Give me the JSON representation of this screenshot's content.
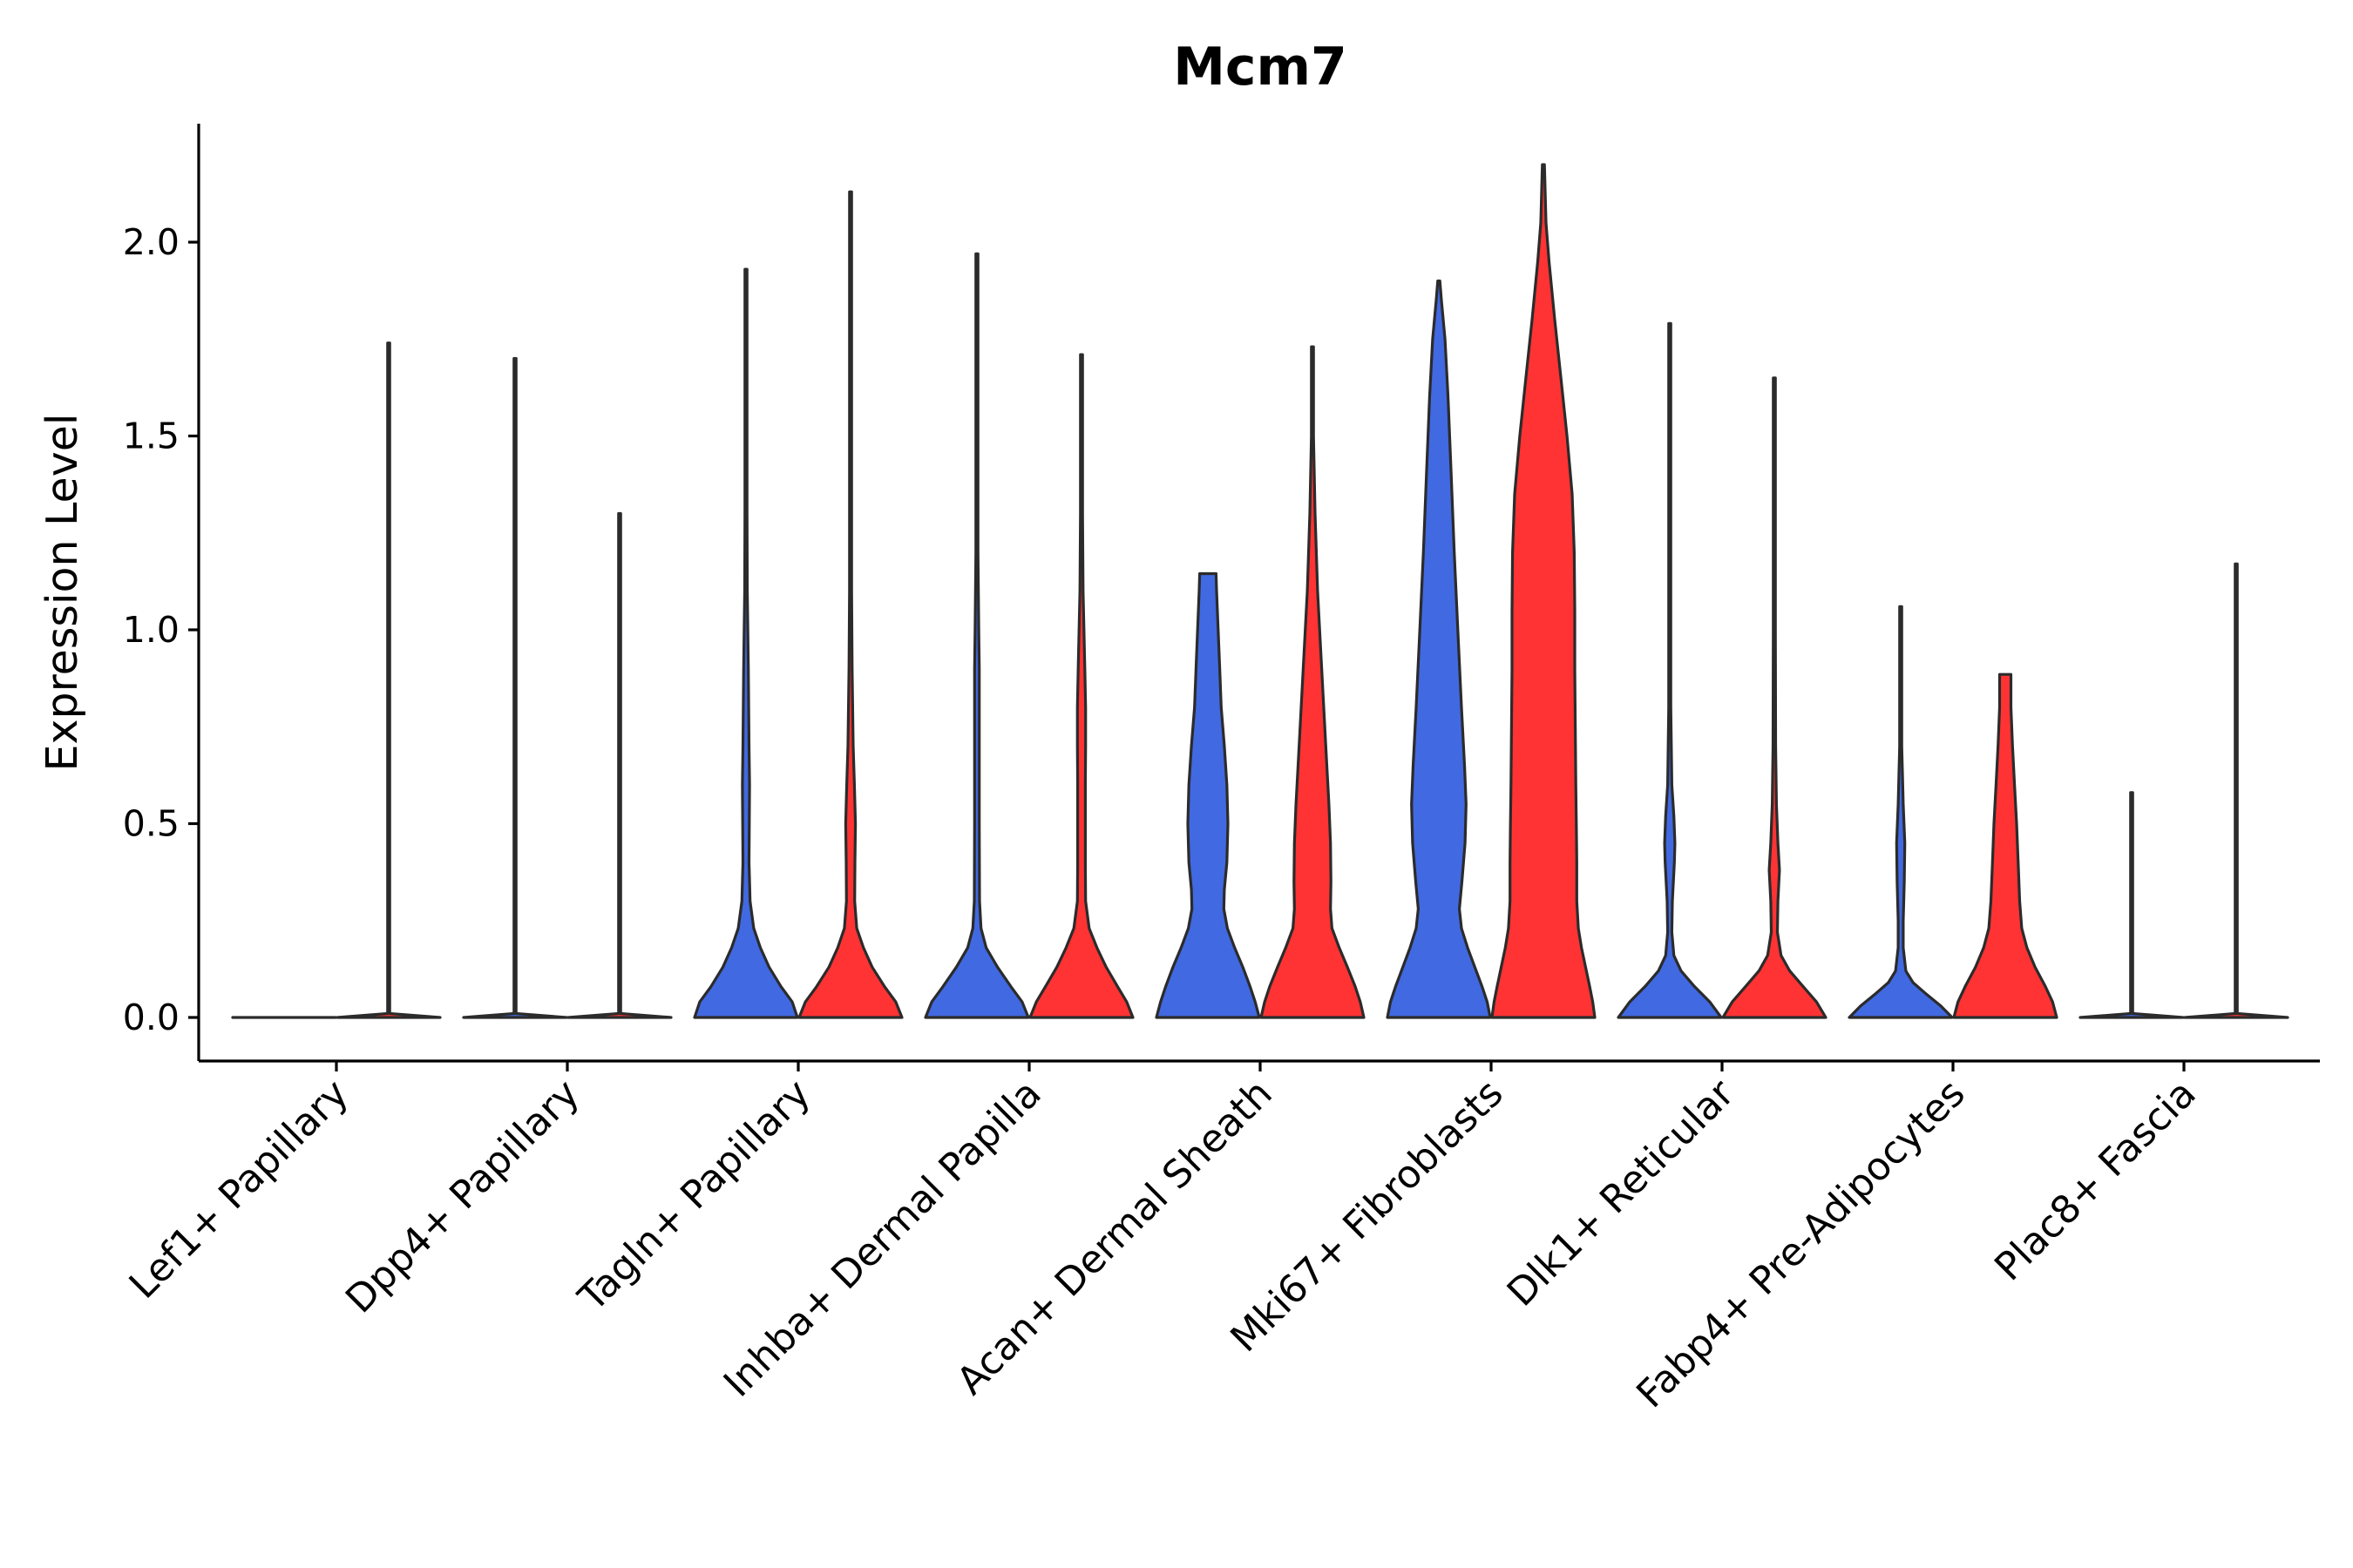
{
  "chart_data": {
    "type": "violin",
    "title": "Mcm7",
    "xlabel": "",
    "ylabel": "Expression Level",
    "ylim": [
      -0.11,
      2.3
    ],
    "yticks": [
      0.0,
      0.5,
      1.0,
      1.5,
      2.0
    ],
    "ytick_labels": [
      "0.0",
      "0.5",
      "1.0",
      "1.5",
      "2.0"
    ],
    "grid": false,
    "legend": "none",
    "series_colors": {
      "group1": "#4169E1",
      "group2": "#FF3333"
    },
    "categories": [
      "Lef1+ Papillary",
      "Dpp4+ Papillary",
      "Tagln+ Papillary",
      "Inhba+ Dermal Papilla",
      "Acan+ Dermal Sheath",
      "Mki67+ Fibroblasts",
      "Dlk1+ Reticular",
      "Fabp4+ Pre-Adipocytes",
      "Plac8+ Fascia"
    ],
    "violins": [
      {
        "category": "Lef1+ Papillary",
        "group": "group1",
        "max": 0.0,
        "width": 1.0,
        "profile": [
          [
            0,
            1.0
          ]
        ]
      },
      {
        "category": "Lef1+ Papillary",
        "group": "group2",
        "max": 1.74,
        "width": 1.0,
        "profile": [
          [
            0,
            1.0
          ],
          [
            0.01,
            0.01
          ],
          [
            1.74,
            0.005
          ]
        ]
      },
      {
        "category": "Dpp4+ Papillary",
        "group": "group1",
        "max": 1.7,
        "width": 1.0,
        "profile": [
          [
            0,
            1.0
          ],
          [
            0.01,
            0.01
          ],
          [
            1.7,
            0.005
          ]
        ]
      },
      {
        "category": "Dpp4+ Papillary",
        "group": "group2",
        "max": 1.3,
        "width": 1.0,
        "profile": [
          [
            0,
            1.0
          ],
          [
            0.01,
            0.01
          ],
          [
            1.3,
            0.005
          ]
        ]
      },
      {
        "category": "Tagln+ Papillary",
        "group": "group1",
        "max": 1.93,
        "width": 1.0,
        "profile": [
          [
            0,
            1.0
          ],
          [
            0.04,
            0.9
          ],
          [
            0.08,
            0.68
          ],
          [
            0.13,
            0.45
          ],
          [
            0.18,
            0.28
          ],
          [
            0.23,
            0.15
          ],
          [
            0.3,
            0.08
          ],
          [
            0.4,
            0.06
          ],
          [
            0.5,
            0.065
          ],
          [
            0.6,
            0.07
          ],
          [
            0.7,
            0.06
          ],
          [
            0.9,
            0.045
          ],
          [
            1.1,
            0.025
          ],
          [
            1.3,
            0.012
          ],
          [
            1.5,
            0.006
          ],
          [
            1.93,
            0.005
          ]
        ]
      },
      {
        "category": "Tagln+ Papillary",
        "group": "group2",
        "max": 2.13,
        "width": 1.0,
        "profile": [
          [
            0,
            1.0
          ],
          [
            0.04,
            0.88
          ],
          [
            0.08,
            0.66
          ],
          [
            0.13,
            0.42
          ],
          [
            0.18,
            0.25
          ],
          [
            0.23,
            0.12
          ],
          [
            0.3,
            0.08
          ],
          [
            0.4,
            0.085
          ],
          [
            0.5,
            0.095
          ],
          [
            0.6,
            0.075
          ],
          [
            0.7,
            0.05
          ],
          [
            0.9,
            0.03
          ],
          [
            1.1,
            0.015
          ],
          [
            1.4,
            0.008
          ],
          [
            2.13,
            0.005
          ]
        ]
      },
      {
        "category": "Inhba+ Dermal Papilla",
        "group": "group1",
        "max": 1.97,
        "width": 1.0,
        "profile": [
          [
            0,
            1.0
          ],
          [
            0.04,
            0.88
          ],
          [
            0.08,
            0.66
          ],
          [
            0.13,
            0.4
          ],
          [
            0.18,
            0.18
          ],
          [
            0.23,
            0.08
          ],
          [
            0.3,
            0.05
          ],
          [
            0.5,
            0.045
          ],
          [
            0.7,
            0.045
          ],
          [
            0.9,
            0.045
          ],
          [
            1.0,
            0.035
          ],
          [
            1.2,
            0.015
          ],
          [
            1.5,
            0.007
          ],
          [
            1.97,
            0.005
          ]
        ]
      },
      {
        "category": "Inhba+ Dermal Papilla",
        "group": "group2",
        "max": 1.71,
        "width": 1.0,
        "profile": [
          [
            0,
            1.0
          ],
          [
            0.04,
            0.88
          ],
          [
            0.08,
            0.7
          ],
          [
            0.13,
            0.48
          ],
          [
            0.18,
            0.3
          ],
          [
            0.23,
            0.15
          ],
          [
            0.3,
            0.08
          ],
          [
            0.4,
            0.075
          ],
          [
            0.5,
            0.075
          ],
          [
            0.6,
            0.075
          ],
          [
            0.7,
            0.08
          ],
          [
            0.8,
            0.08
          ],
          [
            0.9,
            0.065
          ],
          [
            1.1,
            0.03
          ],
          [
            1.3,
            0.012
          ],
          [
            1.71,
            0.005
          ]
        ]
      },
      {
        "category": "Acan+ Dermal Sheath",
        "group": "group1",
        "max": 1.145,
        "width": 1.0,
        "profile": [
          [
            0,
            1.0
          ],
          [
            0.04,
            0.92
          ],
          [
            0.08,
            0.82
          ],
          [
            0.13,
            0.68
          ],
          [
            0.18,
            0.52
          ],
          [
            0.23,
            0.38
          ],
          [
            0.28,
            0.31
          ],
          [
            0.33,
            0.32
          ],
          [
            0.4,
            0.37
          ],
          [
            0.5,
            0.39
          ],
          [
            0.6,
            0.37
          ],
          [
            0.7,
            0.32
          ],
          [
            0.8,
            0.26
          ],
          [
            0.9,
            0.23
          ],
          [
            1.0,
            0.2
          ],
          [
            1.1,
            0.17
          ],
          [
            1.145,
            0.16
          ]
        ]
      },
      {
        "category": "Acan+ Dermal Sheath",
        "group": "group2",
        "max": 1.73,
        "width": 1.0,
        "profile": [
          [
            0,
            1.0
          ],
          [
            0.04,
            0.93
          ],
          [
            0.08,
            0.83
          ],
          [
            0.13,
            0.68
          ],
          [
            0.18,
            0.52
          ],
          [
            0.23,
            0.38
          ],
          [
            0.28,
            0.35
          ],
          [
            0.35,
            0.36
          ],
          [
            0.45,
            0.35
          ],
          [
            0.55,
            0.32
          ],
          [
            0.7,
            0.26
          ],
          [
            0.9,
            0.18
          ],
          [
            1.1,
            0.1
          ],
          [
            1.3,
            0.05
          ],
          [
            1.5,
            0.02
          ],
          [
            1.73,
            0.005
          ]
        ]
      },
      {
        "category": "Mki67+ Fibroblasts",
        "group": "group1",
        "max": 1.9,
        "width": 1.0,
        "profile": [
          [
            0,
            1.0
          ],
          [
            0.04,
            0.94
          ],
          [
            0.08,
            0.84
          ],
          [
            0.13,
            0.7
          ],
          [
            0.18,
            0.56
          ],
          [
            0.23,
            0.44
          ],
          [
            0.28,
            0.4
          ],
          [
            0.35,
            0.45
          ],
          [
            0.45,
            0.51
          ],
          [
            0.55,
            0.53
          ],
          [
            0.65,
            0.5
          ],
          [
            0.8,
            0.44
          ],
          [
            1.0,
            0.37
          ],
          [
            1.2,
            0.3
          ],
          [
            1.4,
            0.24
          ],
          [
            1.6,
            0.18
          ],
          [
            1.75,
            0.12
          ],
          [
            1.85,
            0.05
          ],
          [
            1.9,
            0.01
          ]
        ]
      },
      {
        "category": "Mki67+ Fibroblasts",
        "group": "group2",
        "max": 2.2,
        "width": 1.0,
        "profile": [
          [
            0,
            1.0
          ],
          [
            0.04,
            0.96
          ],
          [
            0.08,
            0.9
          ],
          [
            0.13,
            0.82
          ],
          [
            0.18,
            0.74
          ],
          [
            0.23,
            0.68
          ],
          [
            0.3,
            0.65
          ],
          [
            0.4,
            0.65
          ],
          [
            0.5,
            0.64
          ],
          [
            0.6,
            0.63
          ],
          [
            0.75,
            0.62
          ],
          [
            0.9,
            0.61
          ],
          [
            1.05,
            0.61
          ],
          [
            1.2,
            0.6
          ],
          [
            1.35,
            0.56
          ],
          [
            1.5,
            0.46
          ],
          [
            1.65,
            0.34
          ],
          [
            1.8,
            0.22
          ],
          [
            1.95,
            0.11
          ],
          [
            2.05,
            0.05
          ],
          [
            2.2,
            0.005
          ]
        ]
      },
      {
        "category": "Dlk1+ Reticular",
        "group": "group1",
        "max": 1.79,
        "width": 1.0,
        "profile": [
          [
            0,
            1.0
          ],
          [
            0.04,
            0.78
          ],
          [
            0.08,
            0.48
          ],
          [
            0.12,
            0.22
          ],
          [
            0.16,
            0.08
          ],
          [
            0.22,
            0.04
          ],
          [
            0.3,
            0.05
          ],
          [
            0.4,
            0.09
          ],
          [
            0.45,
            0.1
          ],
          [
            0.52,
            0.08
          ],
          [
            0.6,
            0.04
          ],
          [
            0.8,
            0.02
          ],
          [
            1.0,
            0.01
          ],
          [
            1.79,
            0.005
          ]
        ]
      },
      {
        "category": "Dlk1+ Reticular",
        "group": "group2",
        "max": 1.65,
        "width": 1.0,
        "profile": [
          [
            0,
            1.0
          ],
          [
            0.04,
            0.82
          ],
          [
            0.08,
            0.56
          ],
          [
            0.12,
            0.3
          ],
          [
            0.16,
            0.13
          ],
          [
            0.22,
            0.06
          ],
          [
            0.3,
            0.07
          ],
          [
            0.38,
            0.1
          ],
          [
            0.45,
            0.07
          ],
          [
            0.55,
            0.04
          ],
          [
            0.7,
            0.025
          ],
          [
            1.0,
            0.01
          ],
          [
            1.65,
            0.005
          ]
        ]
      },
      {
        "category": "Fabp4+ Pre-Adipocytes",
        "group": "group1",
        "max": 1.06,
        "width": 1.0,
        "profile": [
          [
            0,
            1.0
          ],
          [
            0.03,
            0.78
          ],
          [
            0.06,
            0.5
          ],
          [
            0.09,
            0.24
          ],
          [
            0.12,
            0.1
          ],
          [
            0.18,
            0.05
          ],
          [
            0.25,
            0.05
          ],
          [
            0.35,
            0.07
          ],
          [
            0.45,
            0.08
          ],
          [
            0.55,
            0.05
          ],
          [
            0.7,
            0.02
          ],
          [
            1.06,
            0.005
          ]
        ]
      },
      {
        "category": "Fabp4+ Pre-Adipocytes",
        "group": "group2",
        "max": 0.885,
        "width": 1.0,
        "profile": [
          [
            0,
            1.0
          ],
          [
            0.04,
            0.92
          ],
          [
            0.08,
            0.78
          ],
          [
            0.13,
            0.58
          ],
          [
            0.18,
            0.42
          ],
          [
            0.23,
            0.32
          ],
          [
            0.3,
            0.28
          ],
          [
            0.4,
            0.25
          ],
          [
            0.5,
            0.22
          ],
          [
            0.6,
            0.18
          ],
          [
            0.7,
            0.14
          ],
          [
            0.8,
            0.11
          ],
          [
            0.885,
            0.11
          ]
        ]
      },
      {
        "category": "Plac8+ Fascia",
        "group": "group1",
        "max": 0.58,
        "width": 1.0,
        "profile": [
          [
            0,
            1.0
          ],
          [
            0.01,
            0.01
          ],
          [
            0.58,
            0.005
          ]
        ]
      },
      {
        "category": "Plac8+ Fascia",
        "group": "group2",
        "max": 1.17,
        "width": 1.0,
        "profile": [
          [
            0,
            1.0
          ],
          [
            0.01,
            0.01
          ],
          [
            1.17,
            0.005
          ]
        ]
      }
    ]
  }
}
